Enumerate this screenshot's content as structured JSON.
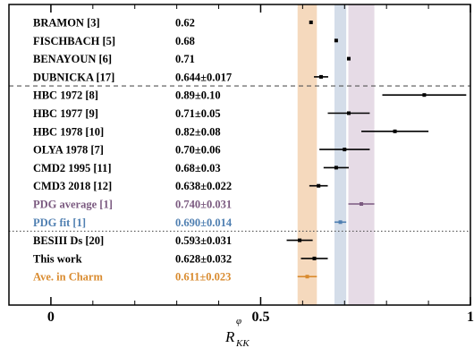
{
  "chart_data": {
    "type": "scatter",
    "xlabel": "R",
    "xlabel_sup": "φ",
    "xlabel_sub": "KK",
    "xlim": [
      -0.1,
      1.0
    ],
    "xticks": [
      {
        "value": 0,
        "label": "0"
      },
      {
        "value": 0.5,
        "label": "0.5"
      },
      {
        "value": 1,
        "label": "1"
      }
    ],
    "bands": [
      {
        "value": 0.611,
        "err": 0.023,
        "color": "#f5d9bd"
      },
      {
        "value": 0.69,
        "err": 0.014,
        "color": "#d4dde9"
      },
      {
        "value": 0.74,
        "err": 0.031,
        "color": "#e6dbe6"
      }
    ],
    "entries": [
      {
        "label": "BRAMON [3]",
        "text": "0.62",
        "value": 0.62,
        "err": null,
        "color": "#000000"
      },
      {
        "label": "FISCHBACH [5]",
        "text": "0.68",
        "value": 0.68,
        "err": null,
        "color": "#000000"
      },
      {
        "label": "BENAYOUN [6]",
        "text": "0.71",
        "value": 0.71,
        "err": null,
        "color": "#000000"
      },
      {
        "label": "DUBNICKA [17]",
        "text": "0.644±0.017",
        "value": 0.644,
        "err": 0.017,
        "color": "#000000"
      },
      {
        "label": "HBC 1972 [8]",
        "text": "0.89±0.10",
        "value": 0.89,
        "err": 0.1,
        "color": "#000000"
      },
      {
        "label": "HBC 1977 [9]",
        "text": "0.71±0.05",
        "value": 0.71,
        "err": 0.05,
        "color": "#000000"
      },
      {
        "label": "HBC 1978 [10]",
        "text": "0.82±0.08",
        "value": 0.82,
        "err": 0.08,
        "color": "#000000"
      },
      {
        "label": "OLYA 1978 [7]",
        "text": "0.70±0.06",
        "value": 0.7,
        "err": 0.06,
        "color": "#000000"
      },
      {
        "label": "CMD2 1995 [11]",
        "text": "0.68±0.03",
        "value": 0.68,
        "err": 0.03,
        "color": "#000000"
      },
      {
        "label": "CMD3 2018 [12]",
        "text": "0.638±0.022",
        "value": 0.638,
        "err": 0.022,
        "color": "#000000"
      },
      {
        "label": "PDG average [1]",
        "text": "0.740±0.031",
        "value": 0.74,
        "err": 0.031,
        "color": "#7b5a80"
      },
      {
        "label": "PDG fit [1]",
        "text": "0.690±0.014",
        "value": 0.69,
        "err": 0.014,
        "color": "#4f7fb1"
      },
      {
        "label": "BESIII Ds [20]",
        "text": "0.593±0.031",
        "value": 0.593,
        "err": 0.031,
        "color": "#000000"
      },
      {
        "label": "This work",
        "text": "0.628±0.032",
        "value": 0.628,
        "err": 0.032,
        "color": "#000000"
      },
      {
        "label": "Ave. in Charm",
        "text": "0.611±0.023",
        "value": 0.611,
        "err": 0.023,
        "color": "#d98b2f"
      }
    ],
    "separators": [
      {
        "after": 3,
        "style": "dashed"
      },
      {
        "after": 11,
        "style": "dotted"
      }
    ],
    "grid": false,
    "legend": "none"
  }
}
